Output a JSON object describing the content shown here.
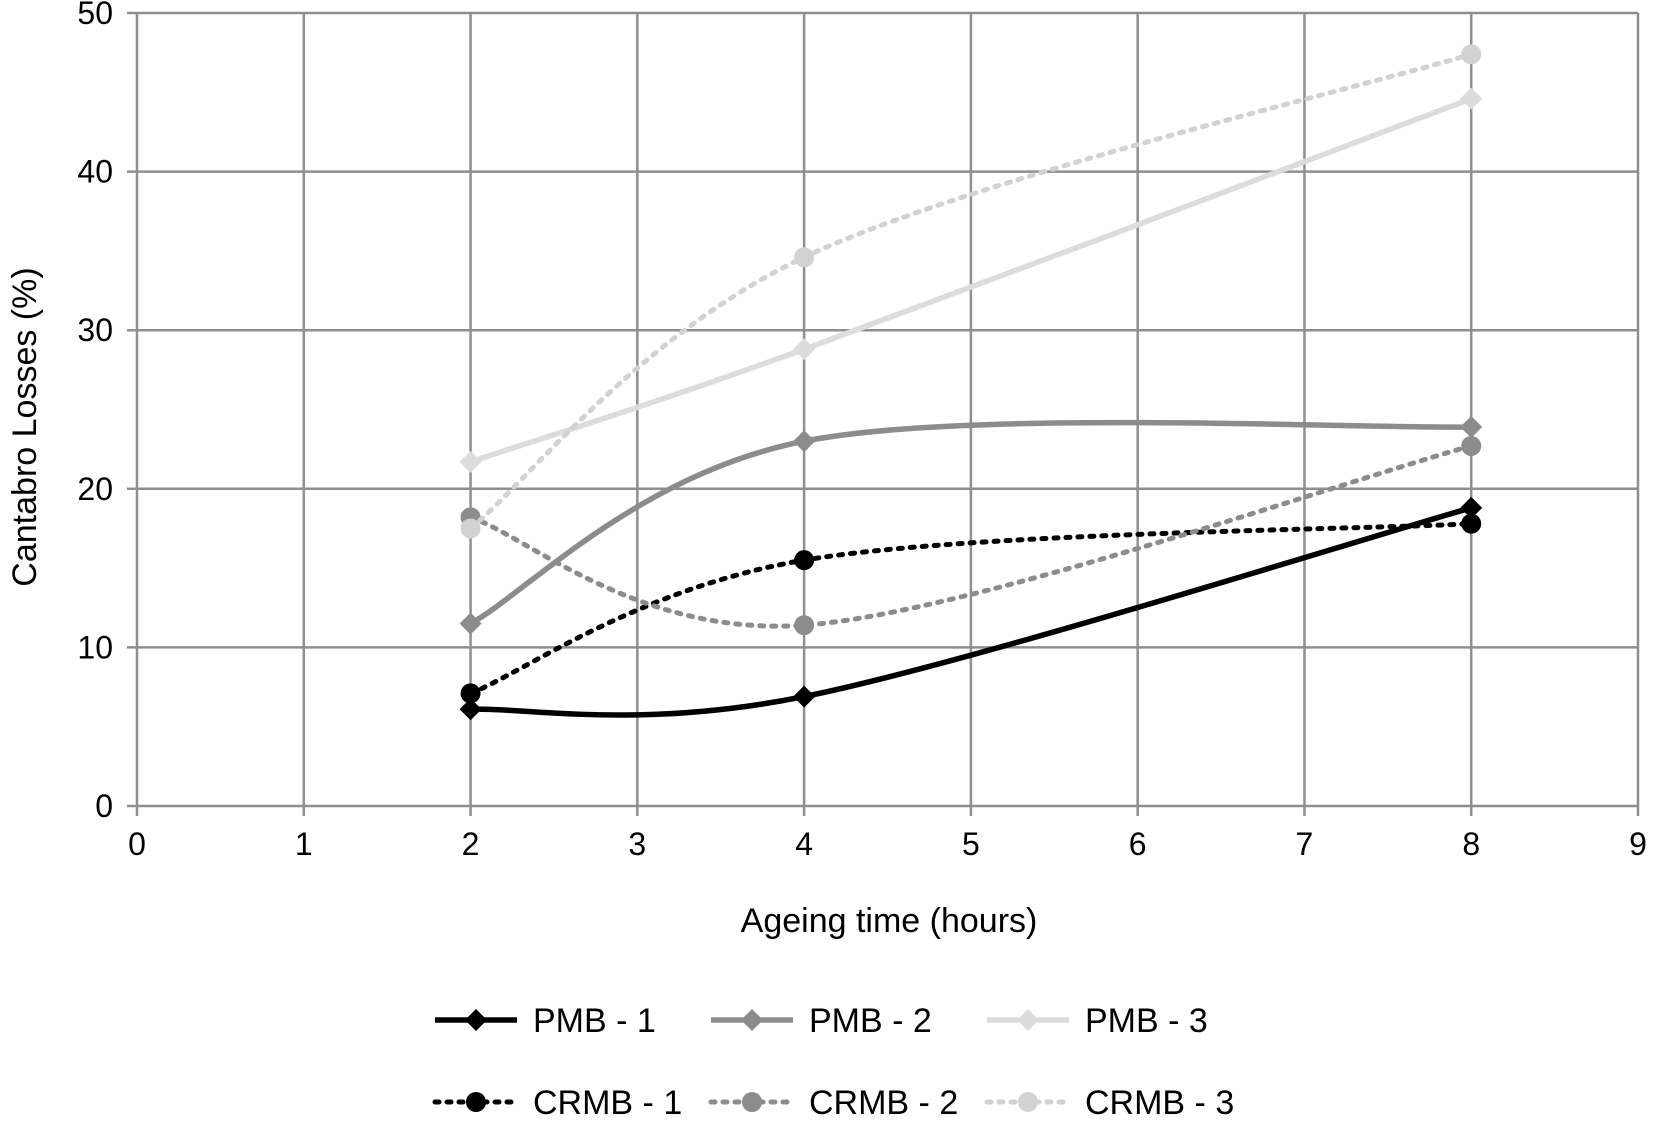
{
  "chart_data": {
    "type": "line",
    "xlabel": "Ageing time (hours)",
    "ylabel": "Cantabro Losses (%)",
    "xlim": [
      0,
      9
    ],
    "ylim": [
      0,
      50
    ],
    "x_ticks": [
      0,
      1,
      2,
      3,
      4,
      5,
      6,
      7,
      8,
      9
    ],
    "y_ticks": [
      0,
      10,
      20,
      30,
      40,
      50
    ],
    "grid": true,
    "legend_position": "bottom",
    "series": [
      {
        "name": "PMB - 1",
        "x": [
          2,
          4,
          8
        ],
        "y": [
          6.1,
          6.9,
          18.8
        ],
        "color": "#000000",
        "dash": "solid",
        "marker": "diamond"
      },
      {
        "name": "PMB - 2",
        "x": [
          2,
          4,
          8
        ],
        "y": [
          11.5,
          23.0,
          23.9
        ],
        "color": "#8c8c8c",
        "dash": "solid",
        "marker": "diamond"
      },
      {
        "name": "PMB - 3",
        "x": [
          2,
          4,
          8
        ],
        "y": [
          21.7,
          28.8,
          44.6
        ],
        "color": "#dcdcdc",
        "dash": "solid",
        "marker": "diamond"
      },
      {
        "name": "CRMB - 1",
        "x": [
          2,
          4,
          8
        ],
        "y": [
          7.1,
          15.5,
          17.8
        ],
        "color": "#000000",
        "dash": "dotted",
        "marker": "circle"
      },
      {
        "name": "CRMB - 2",
        "x": [
          2,
          4,
          8
        ],
        "y": [
          18.2,
          11.4,
          22.7
        ],
        "color": "#8c8c8c",
        "dash": "dotted",
        "marker": "circle"
      },
      {
        "name": "CRMB - 3",
        "x": [
          2,
          4,
          8
        ],
        "y": [
          17.5,
          34.6,
          47.4
        ],
        "color": "#d2d2d2",
        "dash": "dotted",
        "marker": "circle"
      }
    ]
  }
}
